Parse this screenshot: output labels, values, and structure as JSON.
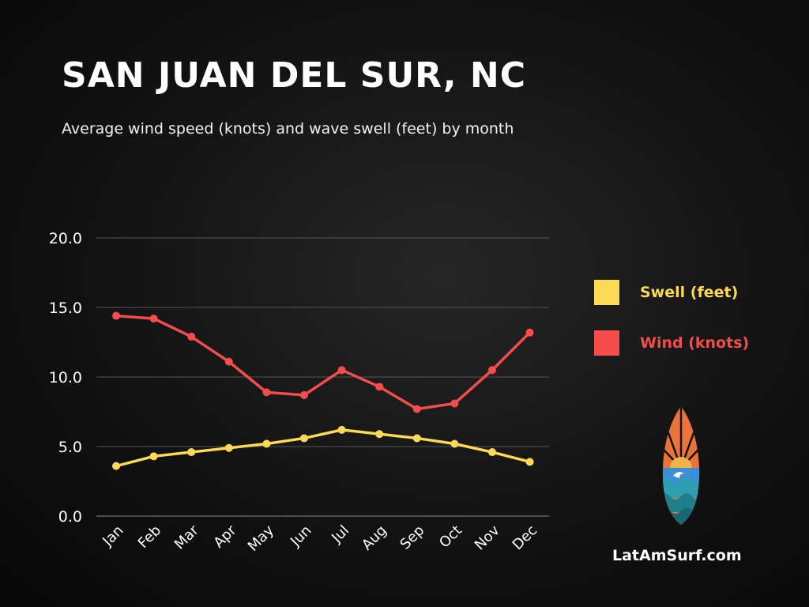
{
  "header": {
    "title": "SAN JUAN DEL SUR, NC",
    "subtitle": "Average wind speed (knots) and wave swell (feet) by month"
  },
  "chart_data": {
    "type": "line",
    "categories": [
      "Jan",
      "Feb",
      "Mar",
      "Apr",
      "May",
      "Jun",
      "Jul",
      "Aug",
      "Sep",
      "Oct",
      "Nov",
      "Dec"
    ],
    "y_ticks": [
      "0.0",
      "5.0",
      "10.0",
      "15.0",
      "20.0"
    ],
    "ylim": [
      0,
      20
    ],
    "grid": true,
    "legend_position": "right",
    "series": [
      {
        "name": "Swell (feet)",
        "color": "#fcd956",
        "values": [
          3.6,
          4.3,
          4.6,
          4.9,
          5.2,
          5.6,
          6.2,
          5.9,
          5.6,
          5.2,
          4.6,
          3.9
        ]
      },
      {
        "name": "Wind (knots)",
        "color": "#f54c4c",
        "values": [
          14.4,
          14.2,
          12.9,
          11.1,
          8.9,
          8.7,
          10.5,
          9.3,
          7.7,
          8.1,
          10.5,
          13.2
        ]
      }
    ]
  },
  "legend": {
    "swell_label": "Swell (feet)",
    "wind_label": "Wind (knots)"
  },
  "footer": {
    "site": "LatAmSurf.com"
  },
  "logo": {
    "icon": "surfboard-sunset-wave-icon"
  }
}
